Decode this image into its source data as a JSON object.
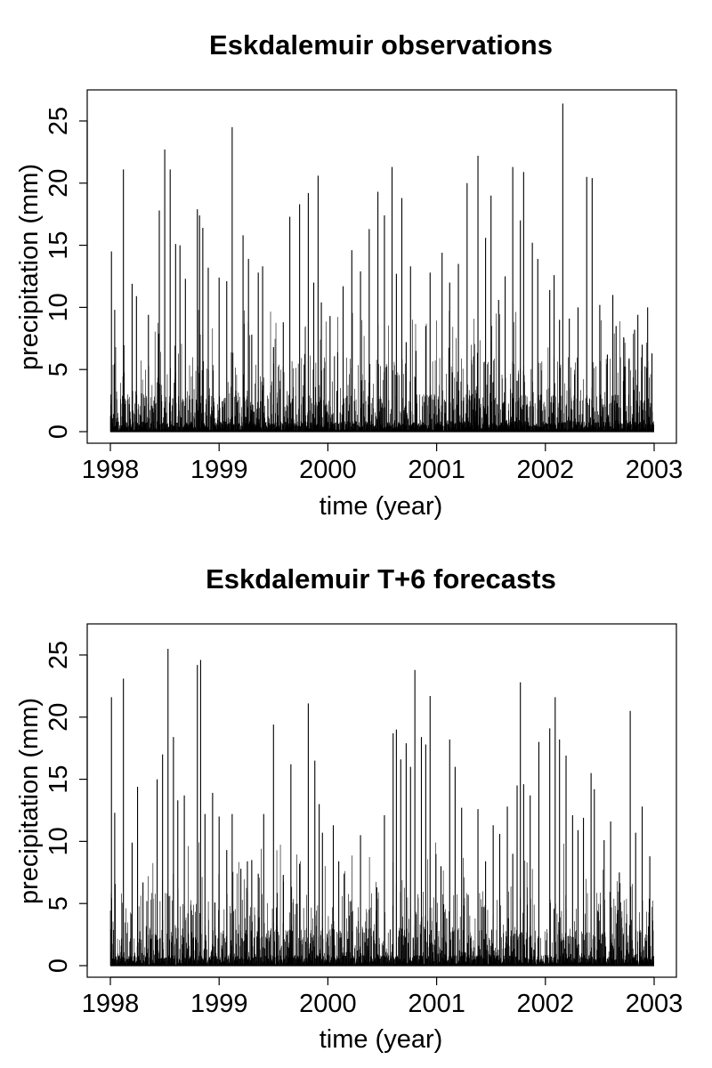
{
  "chart_data": [
    {
      "type": "bar",
      "title": "Eskdalemuir observations",
      "xlabel": "time (year)",
      "ylabel": "precipitation (mm)",
      "xlim": [
        1998,
        2003
      ],
      "ylim": [
        0,
        26.5
      ],
      "xticks": [
        "1998",
        "1999",
        "2000",
        "2001",
        "2002",
        "2003"
      ],
      "yticks": [
        "0",
        "5",
        "10",
        "15",
        "20",
        "25"
      ],
      "grid": false,
      "x": [
        1998.01,
        1998.04,
        1998.12,
        1998.2,
        1998.24,
        1998.35,
        1998.45,
        1998.5,
        1998.55,
        1998.6,
        1998.64,
        1998.69,
        1998.8,
        1998.82,
        1998.85,
        1998.9,
        1999.0,
        1999.07,
        1999.12,
        1999.22,
        1999.27,
        1999.3,
        1999.36,
        1999.4,
        1999.5,
        1999.59,
        1999.65,
        1999.74,
        1999.82,
        1999.87,
        1999.91,
        1999.94,
        2000.02,
        2000.09,
        2000.14,
        2000.22,
        2000.3,
        2000.38,
        2000.46,
        2000.52,
        2000.59,
        2000.63,
        2000.68,
        2000.72,
        2000.76,
        2000.81,
        2000.9,
        2000.94,
        2001.05,
        2001.12,
        2001.2,
        2001.28,
        2001.38,
        2001.45,
        2001.5,
        2001.57,
        2001.63,
        2001.7,
        2001.77,
        2001.8,
        2001.88,
        2001.93,
        2002.04,
        2002.08,
        2002.13,
        2002.16,
        2002.22,
        2002.3,
        2002.38,
        2002.43,
        2002.5,
        2002.57,
        2002.62,
        2002.65,
        2002.72,
        2002.77,
        2002.82,
        2002.85,
        2002.89,
        2002.94,
        2002.98
      ],
      "values": [
        14.5,
        9.8,
        21.1,
        11.9,
        10.9,
        9.4,
        17.8,
        22.7,
        21.1,
        15.1,
        15.0,
        12.3,
        17.9,
        17.4,
        16.4,
        13.2,
        12.4,
        12.1,
        24.5,
        15.8,
        13.9,
        7.8,
        12.8,
        13.3,
        6.8,
        8.8,
        17.3,
        18.3,
        19.2,
        12.0,
        20.6,
        10.4,
        9.3,
        6.4,
        11.7,
        14.6,
        12.9,
        16.3,
        19.3,
        17.4,
        21.3,
        12.7,
        18.8,
        7.2,
        13.3,
        6.5,
        8.5,
        12.8,
        14.4,
        12.0,
        13.5,
        20.0,
        22.2,
        15.6,
        19.0,
        10.6,
        12.5,
        21.3,
        17.0,
        20.9,
        15.2,
        13.9,
        11.4,
        12.6,
        9.0,
        26.4,
        9.1,
        10.0,
        20.5,
        20.4,
        10.2,
        6.2,
        11.0,
        8.5,
        7.6,
        5.9,
        8.2,
        9.4,
        7.0,
        10.0,
        6.3
      ]
    },
    {
      "type": "bar",
      "title": "Eskdalemuir T+6 forecasts",
      "xlabel": "time (year)",
      "ylabel": "precipitation (mm)",
      "xlim": [
        1998,
        2003
      ],
      "ylim": [
        0,
        26.5
      ],
      "xticks": [
        "1998",
        "1999",
        "2000",
        "2001",
        "2002",
        "2003"
      ],
      "yticks": [
        "0",
        "5",
        "10",
        "15",
        "20",
        "25"
      ],
      "grid": false,
      "x": [
        1998.01,
        1998.04,
        1998.12,
        1998.2,
        1998.25,
        1998.3,
        1998.43,
        1998.48,
        1998.53,
        1998.58,
        1998.62,
        1998.68,
        1998.8,
        1998.83,
        1998.87,
        1998.94,
        1999.0,
        1999.07,
        1999.12,
        1999.2,
        1999.26,
        1999.3,
        1999.36,
        1999.41,
        1999.5,
        1999.59,
        1999.66,
        1999.74,
        1999.82,
        1999.88,
        1999.92,
        1999.95,
        2000.05,
        2000.1,
        2000.15,
        2000.22,
        2000.3,
        2000.38,
        2000.45,
        2000.52,
        2000.6,
        2000.63,
        2000.67,
        2000.72,
        2000.76,
        2000.8,
        2000.86,
        2000.9,
        2000.94,
        2001.04,
        2001.12,
        2001.17,
        2001.23,
        2001.29,
        2001.38,
        2001.45,
        2001.52,
        2001.58,
        2001.65,
        2001.7,
        2001.74,
        2001.77,
        2001.8,
        2001.86,
        2001.94,
        2002.04,
        2002.09,
        2002.13,
        2002.19,
        2002.25,
        2002.3,
        2002.35,
        2002.42,
        2002.45,
        2002.54,
        2002.6,
        2002.68,
        2002.78,
        2002.83,
        2002.89,
        2002.96
      ],
      "values": [
        21.6,
        12.3,
        23.1,
        9.9,
        14.4,
        6.7,
        15.0,
        17.0,
        25.5,
        18.4,
        13.3,
        13.7,
        24.2,
        24.6,
        12.2,
        13.9,
        12.0,
        9.3,
        12.2,
        7.8,
        8.4,
        8.5,
        7.4,
        12.2,
        19.4,
        7.3,
        16.2,
        8.2,
        21.1,
        16.5,
        13.0,
        10.7,
        11.3,
        8.4,
        7.4,
        4.3,
        10.5,
        4.5,
        6.3,
        12.1,
        18.7,
        19.0,
        16.6,
        17.9,
        16.0,
        23.8,
        18.4,
        17.8,
        21.7,
        8.0,
        18.2,
        16.0,
        12.7,
        5.7,
        12.6,
        8.4,
        11.3,
        10.6,
        12.8,
        9.0,
        14.5,
        22.8,
        14.6,
        13.7,
        18.0,
        19.1,
        21.6,
        18.2,
        16.9,
        12.1,
        10.9,
        11.9,
        15.5,
        14.2,
        10.1,
        11.6,
        7.5,
        20.5,
        10.7,
        12.8,
        8.8
      ]
    }
  ]
}
